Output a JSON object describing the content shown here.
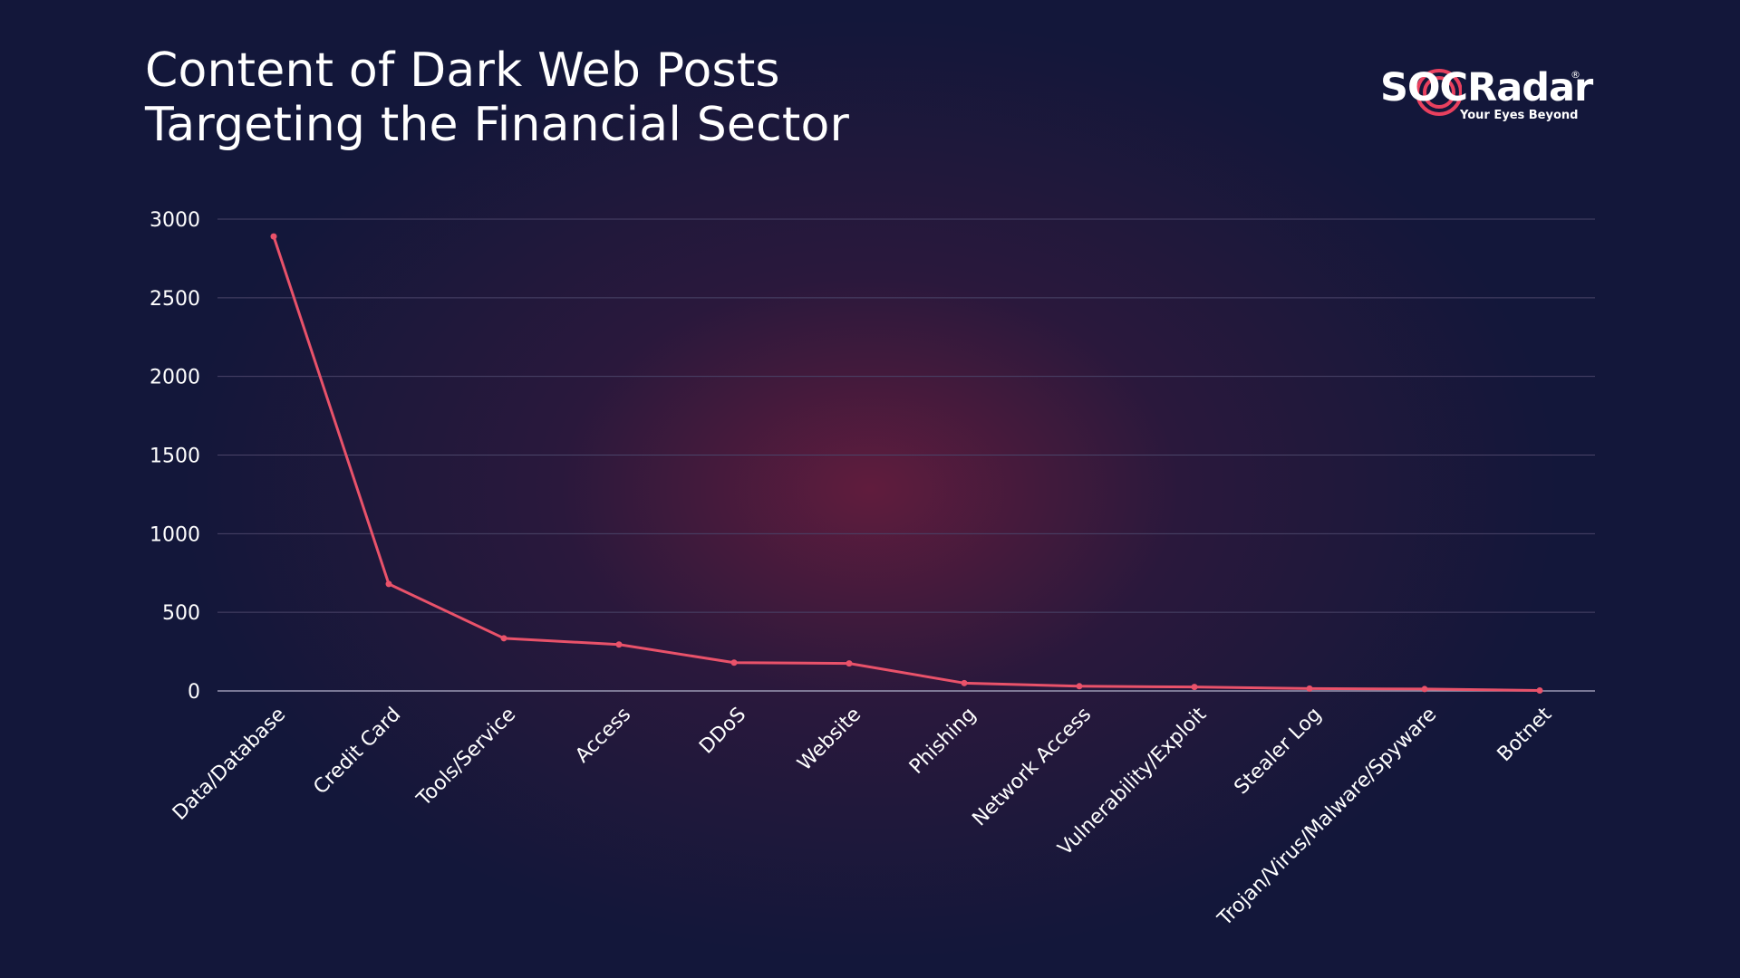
{
  "title_lines": [
    "Content of Dark Web Posts",
    "Targeting the Financial Sector"
  ],
  "logo": {
    "name_prefix": "S",
    "name_accent": "O",
    "name_suffix": "CRadar",
    "registered": "®",
    "tagline": "Your Eyes Beyond"
  },
  "colors": {
    "line": "#e9526a",
    "grid": "#4a4468",
    "axis": "#9a97b3",
    "accent": "#e8405e",
    "background": "#13173a"
  },
  "chart_data": {
    "type": "line",
    "title": "Content of Dark Web Posts Targeting the Financial Sector",
    "categories": [
      "Data/Database",
      "Credit Card",
      "Tools/Service",
      "Access",
      "DDoS",
      "Website",
      "Phishing",
      "Network Access",
      "Vulnerability/Exploit",
      "Stealer Log",
      "Trojan/Virus/Malware/Spyware",
      "Botnet"
    ],
    "series": [
      {
        "values": [
          2890,
          680,
          335,
          295,
          180,
          175,
          50,
          30,
          25,
          15,
          12,
          3
        ]
      }
    ],
    "ylim": [
      0,
      3000
    ],
    "yticks": [
      0,
      500,
      1000,
      1500,
      2000,
      2500,
      3000
    ],
    "grid": true,
    "legend": "none"
  }
}
